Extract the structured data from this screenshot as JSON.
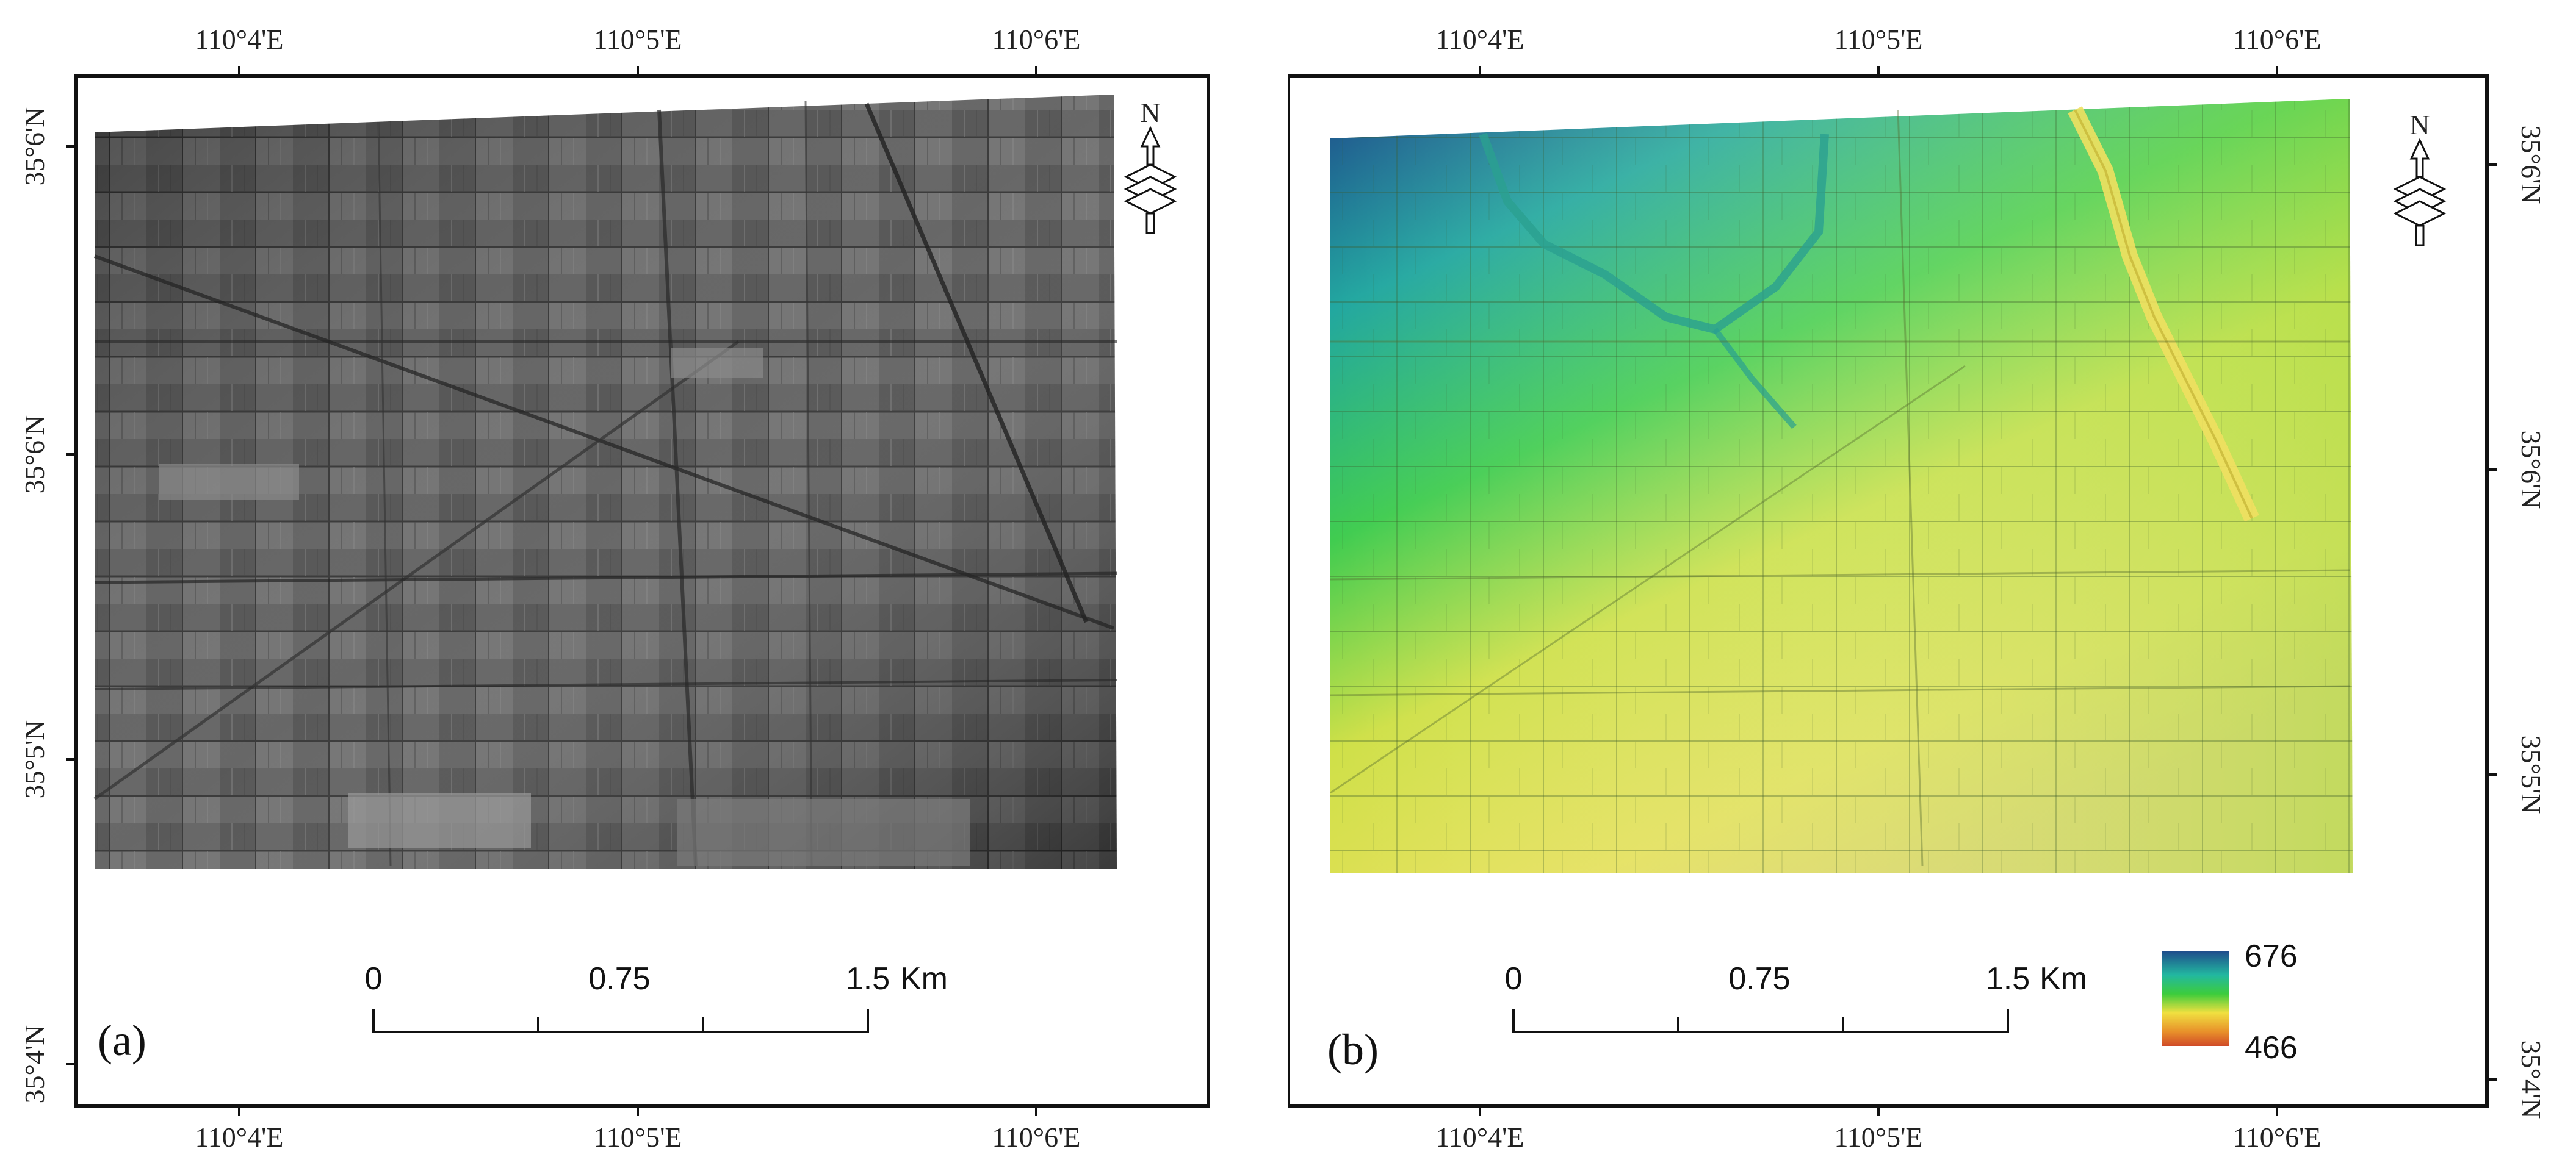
{
  "panel_a": {
    "label": "(a)",
    "lon_ticks": [
      "110°4'E",
      "110°5'E",
      "110°6'E"
    ],
    "lat_ticks": [
      "35°6'N",
      "35°6'N",
      "35°5'N",
      "35°4'N"
    ],
    "scale_ticks": [
      "0",
      "0.75",
      "1.5"
    ],
    "scale_unit": "Km",
    "north_label": "N",
    "north_icon": "north-arrow-icon"
  },
  "panel_b": {
    "label": "(b)",
    "lon_ticks": [
      "110°4'E",
      "110°5'E",
      "110°6'E"
    ],
    "lat_ticks": [
      "35°6'N",
      "35°6'N",
      "35°5'N",
      "35°4'N"
    ],
    "scale_ticks": [
      "0",
      "0.75",
      "1.5"
    ],
    "scale_unit": "Km",
    "north_label": "N",
    "north_icon": "north-arrow-icon",
    "legend": {
      "max": "676",
      "min": "466",
      "colors": [
        "#1f4e8c",
        "#22b8a0",
        "#3ccc3c",
        "#f0e040",
        "#e8902a",
        "#d04a28"
      ]
    }
  }
}
